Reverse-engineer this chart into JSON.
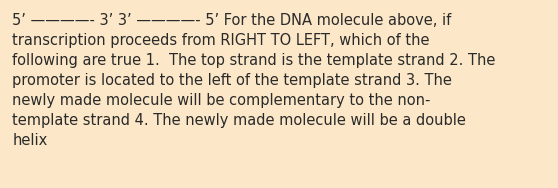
{
  "background_color": "#fce8c8",
  "text_color": "#2a2a2a",
  "lines": [
    "5’ ————- 3’ 3’ ————- 5’ For the DNA molecule above, if",
    "transcription proceeds from RIGHT TO LEFT, which of the",
    "following are true 1.  The top strand is the template strand 2. The",
    "promoter is located to the left of the template strand 3. The",
    "newly made molecule will be complementary to the non-",
    "template strand 4. The newly made molecule will be a double",
    "helix"
  ],
  "font_size": 10.5,
  "fig_width": 5.58,
  "fig_height": 1.88,
  "dpi": 100
}
